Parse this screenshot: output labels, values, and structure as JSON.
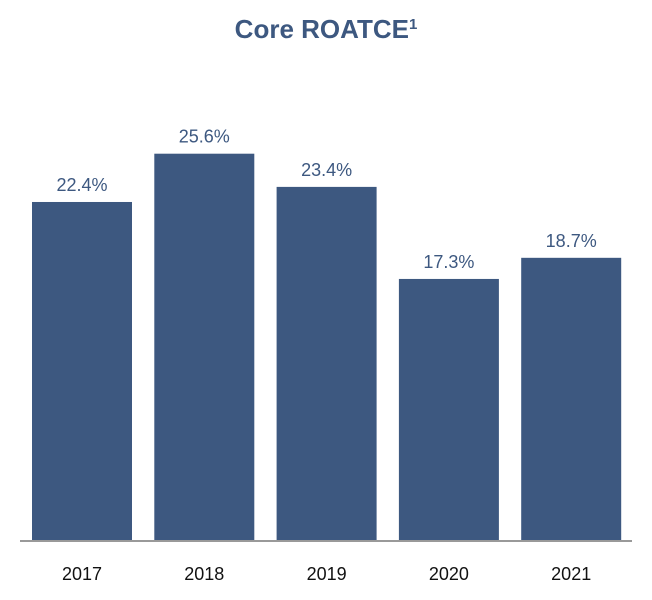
{
  "chart_data": {
    "type": "bar",
    "title": "Core ROATCE",
    "title_footnote": "1",
    "categories": [
      "2017",
      "2018",
      "2019",
      "2020",
      "2021"
    ],
    "values": [
      22.4,
      25.6,
      23.4,
      17.3,
      18.7
    ],
    "data_labels": [
      "22.4%",
      "25.6%",
      "23.4%",
      "17.3%",
      "18.7%"
    ],
    "xlabel": "",
    "ylabel": "",
    "ylim": [
      0,
      26
    ],
    "grid": false,
    "bar_color": "#3d5880",
    "axis_color": "#999999"
  }
}
